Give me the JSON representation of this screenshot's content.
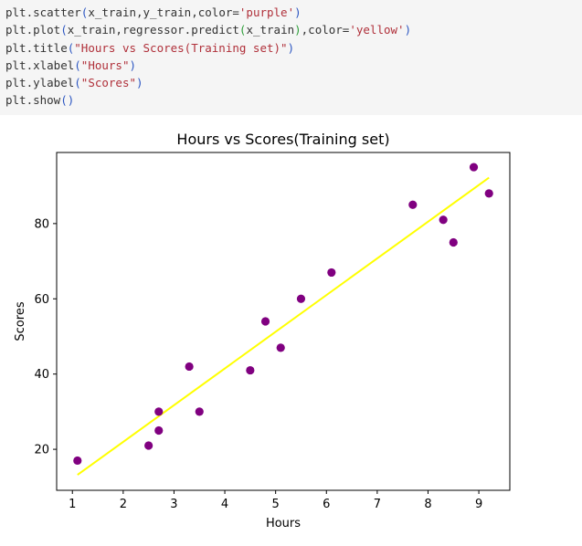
{
  "code": {
    "lines": [
      [
        {
          "t": "plt.scatter",
          "c": "fn"
        },
        {
          "t": "(",
          "c": "p1"
        },
        {
          "t": "x_train,y_train,color=",
          "c": "fn"
        },
        {
          "t": "'purple'",
          "c": "str"
        },
        {
          "t": ")",
          "c": "p1"
        }
      ],
      [
        {
          "t": "plt.plot",
          "c": "fn"
        },
        {
          "t": "(",
          "c": "p1"
        },
        {
          "t": "x_train,regressor.predict",
          "c": "fn"
        },
        {
          "t": "(",
          "c": "p2"
        },
        {
          "t": "x_train",
          "c": "fn"
        },
        {
          "t": ")",
          "c": "p2"
        },
        {
          "t": ",color=",
          "c": "fn"
        },
        {
          "t": "'yellow'",
          "c": "str"
        },
        {
          "t": ")",
          "c": "p1"
        }
      ],
      [
        {
          "t": "plt.title",
          "c": "fn"
        },
        {
          "t": "(",
          "c": "p1"
        },
        {
          "t": "\"Hours vs Scores(Training set)\"",
          "c": "str"
        },
        {
          "t": ")",
          "c": "p1"
        }
      ],
      [
        {
          "t": "plt.xlabel",
          "c": "fn"
        },
        {
          "t": "(",
          "c": "p1"
        },
        {
          "t": "\"Hours\"",
          "c": "str"
        },
        {
          "t": ")",
          "c": "p1"
        }
      ],
      [
        {
          "t": "plt.ylabel",
          "c": "fn"
        },
        {
          "t": "(",
          "c": "p1"
        },
        {
          "t": "\"Scores\"",
          "c": "str"
        },
        {
          "t": ")",
          "c": "p1"
        }
      ],
      [
        {
          "t": "plt.show",
          "c": "fn"
        },
        {
          "t": "()",
          "c": "p1"
        }
      ]
    ]
  },
  "chart_data": {
    "type": "scatter",
    "title": "Hours vs Scores(Training set)",
    "xlabel": "Hours",
    "ylabel": "Scores",
    "xlim": [
      0.69,
      9.61
    ],
    "ylim": [
      9.1,
      98.9
    ],
    "xticks": [
      1,
      2,
      3,
      4,
      5,
      6,
      7,
      8,
      9
    ],
    "yticks": [
      20,
      40,
      60,
      80
    ],
    "grid": false,
    "series": [
      {
        "kind": "scatter",
        "color": "#800080",
        "points": [
          {
            "x": 1.1,
            "y": 17
          },
          {
            "x": 2.5,
            "y": 21
          },
          {
            "x": 2.7,
            "y": 25
          },
          {
            "x": 2.7,
            "y": 30
          },
          {
            "x": 3.3,
            "y": 42
          },
          {
            "x": 3.5,
            "y": 30
          },
          {
            "x": 4.5,
            "y": 41
          },
          {
            "x": 4.8,
            "y": 54
          },
          {
            "x": 5.1,
            "y": 47
          },
          {
            "x": 5.5,
            "y": 60
          },
          {
            "x": 6.1,
            "y": 67
          },
          {
            "x": 7.7,
            "y": 85
          },
          {
            "x": 8.3,
            "y": 81
          },
          {
            "x": 8.5,
            "y": 75
          },
          {
            "x": 8.9,
            "y": 95
          },
          {
            "x": 9.2,
            "y": 88
          }
        ]
      },
      {
        "kind": "line",
        "color": "#ffff00",
        "points": [
          {
            "x": 1.1,
            "y": 13.2
          },
          {
            "x": 9.2,
            "y": 92.2
          }
        ]
      }
    ]
  }
}
